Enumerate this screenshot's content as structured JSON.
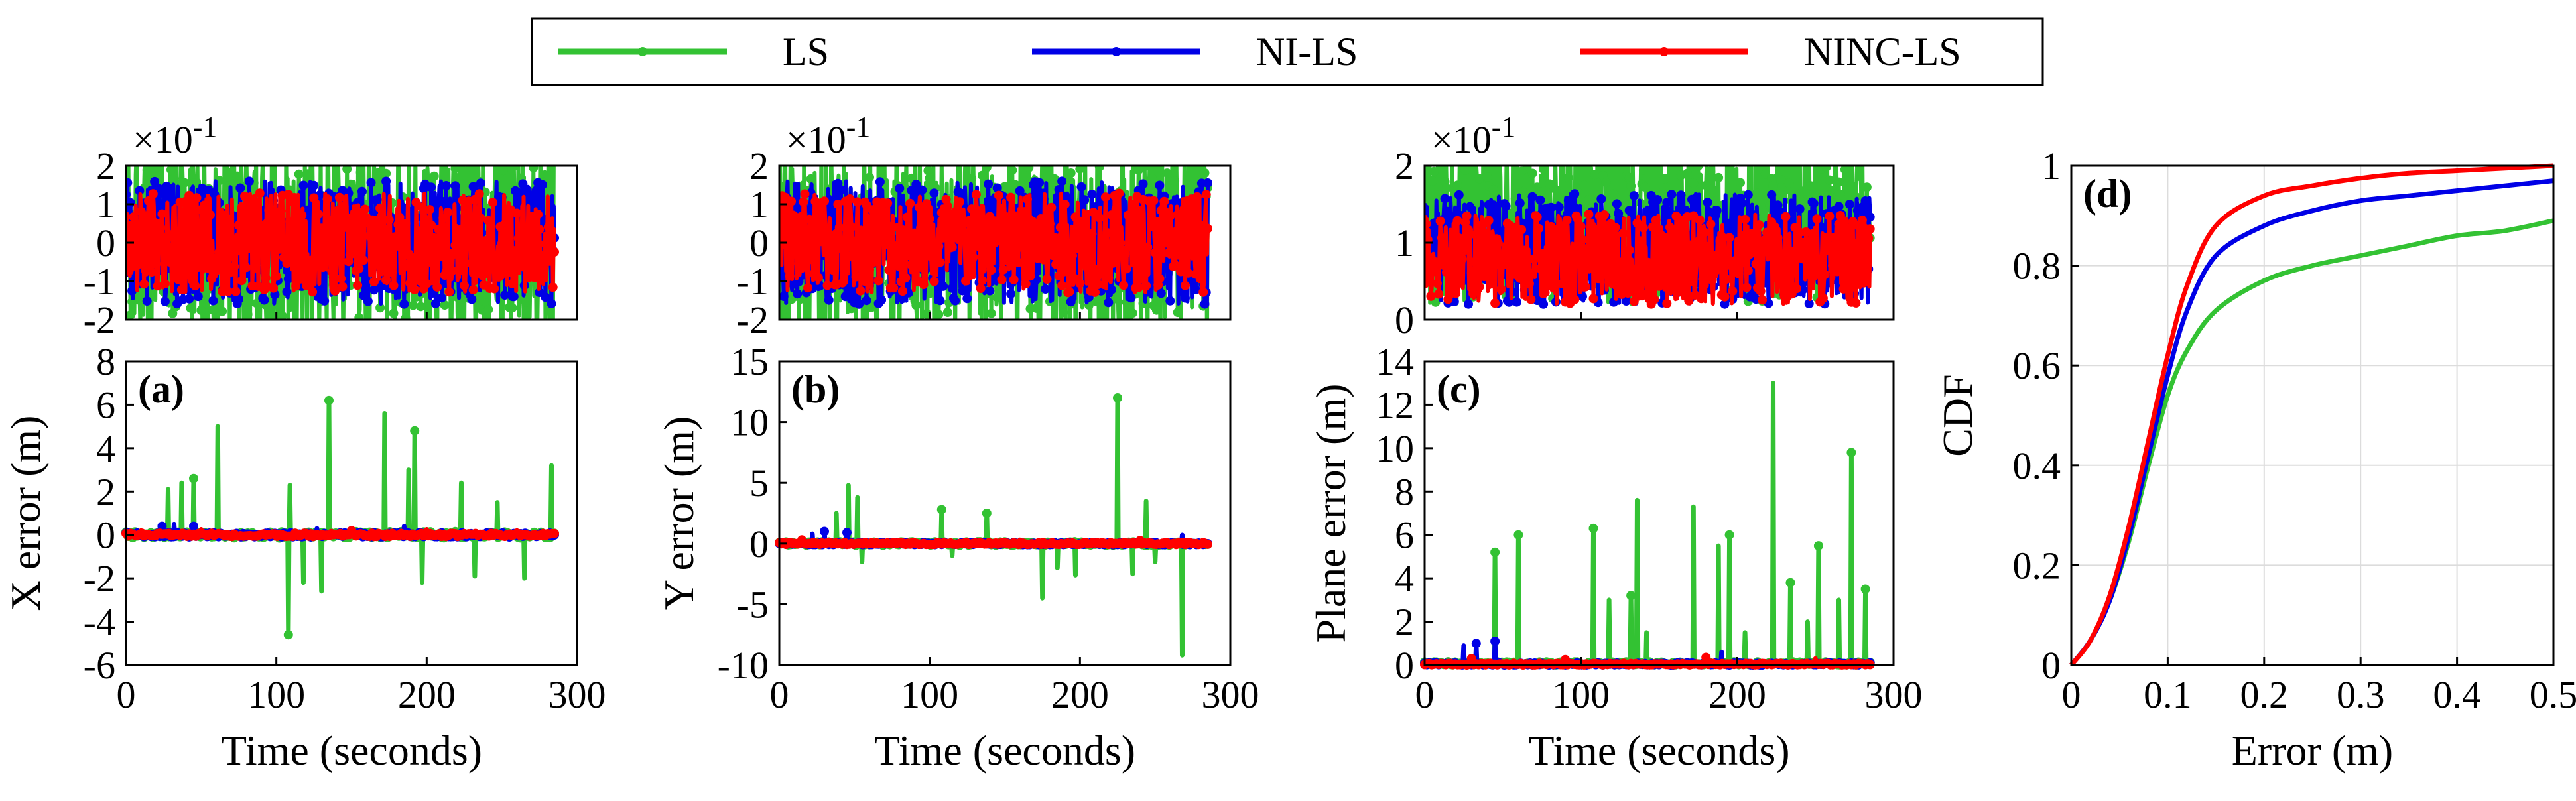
{
  "legend": {
    "entries": [
      {
        "label": "LS",
        "color": "#33c233"
      },
      {
        "label": "NI-LS",
        "color": "#0000e6"
      },
      {
        "label": "NINC-LS",
        "color": "#ff0000"
      }
    ]
  },
  "colors": {
    "LS": "#33c233",
    "NI-LS": "#0000e6",
    "NINC-LS": "#ff0000",
    "grid": "#dcdcdc",
    "axis": "#000000"
  },
  "chart_data": [
    {
      "id": "a",
      "type": "line",
      "panel_label": "(a)",
      "ylabel": "X error (m)",
      "xlabel": "Time (seconds)",
      "xlim": [
        0,
        300
      ],
      "ylim": [
        -6,
        8
      ],
      "xticks": [
        0,
        100,
        200,
        300
      ],
      "yticks": [
        -6,
        -4,
        -2,
        0,
        2,
        4,
        6,
        8
      ],
      "inset": {
        "ylim": [
          -2,
          2
        ],
        "yticks": [
          -2,
          -1,
          0,
          1,
          2
        ],
        "exponent_label": "×10",
        "exponent": "-1"
      },
      "series": [
        {
          "name": "LS",
          "spikes": [
            [
              28,
              2.1
            ],
            [
              37,
              2.4
            ],
            [
              45,
              2.6
            ],
            [
              61,
              5.0
            ],
            [
              108,
              -4.6
            ],
            [
              109,
              2.3
            ],
            [
              118,
              -2.2
            ],
            [
              130,
              -2.6
            ],
            [
              135,
              6.2
            ],
            [
              172,
              5.6
            ],
            [
              188,
              3.0
            ],
            [
              192,
              4.8
            ],
            [
              197,
              -2.2
            ],
            [
              223,
              2.4
            ],
            [
              232,
              -1.9
            ],
            [
              247,
              1.5
            ],
            [
              265,
              -2.0
            ],
            [
              283,
              3.2
            ]
          ]
        },
        {
          "name": "NI-LS",
          "spikes": [
            [
              24,
              0.4
            ],
            [
              32,
              0.5
            ],
            [
              45,
              0.4
            ],
            [
              127,
              0.3
            ],
            [
              185,
              0.4
            ]
          ]
        },
        {
          "name": "NINC-LS",
          "spikes": [
            [
              10,
              0.2
            ],
            [
              50,
              0.25
            ],
            [
              150,
              0.2
            ],
            [
              200,
              0.25
            ],
            [
              260,
              0.2
            ]
          ]
        }
      ]
    },
    {
      "id": "b",
      "type": "line",
      "panel_label": "(b)",
      "ylabel": "Y error (m)",
      "xlabel": "Time (seconds)",
      "xlim": [
        0,
        300
      ],
      "ylim": [
        -10,
        15
      ],
      "xticks": [
        0,
        100,
        200,
        300
      ],
      "yticks": [
        -10,
        -5,
        0,
        5,
        10,
        15
      ],
      "inset": {
        "ylim": [
          -2,
          2
        ],
        "yticks": [
          -2,
          -1,
          0,
          1,
          2
        ],
        "exponent_label": "×10",
        "exponent": "-1"
      },
      "series": [
        {
          "name": "LS",
          "spikes": [
            [
              38,
              2.5
            ],
            [
              46,
              4.8
            ],
            [
              52,
              3.8
            ],
            [
              55,
              -1.5
            ],
            [
              108,
              2.8
            ],
            [
              115,
              -1.0
            ],
            [
              138,
              2.5
            ],
            [
              175,
              -4.5
            ],
            [
              185,
              -2.0
            ],
            [
              197,
              -2.6
            ],
            [
              225,
              12.0
            ],
            [
              235,
              -2.5
            ],
            [
              244,
              3.5
            ],
            [
              250,
              -1.5
            ],
            [
              268,
              -9.2
            ]
          ]
        },
        {
          "name": "NI-LS",
          "spikes": [
            [
              22,
              0.8
            ],
            [
              30,
              1.0
            ],
            [
              45,
              0.9
            ],
            [
              268,
              0.7
            ]
          ]
        },
        {
          "name": "NINC-LS",
          "spikes": [
            [
              15,
              0.3
            ],
            [
              80,
              0.25
            ],
            [
              160,
              0.3
            ],
            [
              240,
              0.25
            ]
          ]
        }
      ]
    },
    {
      "id": "c",
      "type": "line",
      "panel_label": "(c)",
      "ylabel": "Plane error (m)",
      "xlabel": "Time (seconds)",
      "xlim": [
        0,
        300
      ],
      "ylim": [
        0,
        14
      ],
      "xticks": [
        0,
        100,
        200,
        300
      ],
      "yticks": [
        0,
        2,
        4,
        6,
        8,
        10,
        12,
        14
      ],
      "inset": {
        "ylim": [
          0,
          2
        ],
        "yticks": [
          0,
          1,
          2
        ],
        "exponent_label": "×10",
        "exponent": "-1"
      },
      "series": [
        {
          "name": "LS",
          "spikes": [
            [
              45,
              5.2
            ],
            [
              60,
              6.0
            ],
            [
              108,
              6.3
            ],
            [
              118,
              3.0
            ],
            [
              132,
              3.2
            ],
            [
              136,
              7.6
            ],
            [
              142,
              1.5
            ],
            [
              172,
              7.3
            ],
            [
              188,
              5.5
            ],
            [
              195,
              6.0
            ],
            [
              205,
              1.5
            ],
            [
              223,
              13.0
            ],
            [
              234,
              3.8
            ],
            [
              245,
              2.0
            ],
            [
              252,
              5.5
            ],
            [
              265,
              3.0
            ],
            [
              273,
              9.8
            ],
            [
              282,
              3.5
            ]
          ]
        },
        {
          "name": "NI-LS",
          "spikes": [
            [
              25,
              0.9
            ],
            [
              33,
              1.0
            ],
            [
              45,
              1.1
            ],
            [
              190,
              0.6
            ]
          ]
        },
        {
          "name": "NINC-LS",
          "spikes": [
            [
              30,
              0.3
            ],
            [
              90,
              0.25
            ],
            [
              180,
              0.35
            ],
            [
              250,
              0.3
            ]
          ]
        }
      ]
    },
    {
      "id": "d",
      "type": "line",
      "panel_label": "(d)",
      "ylabel": "CDF",
      "xlabel": "Error (m)",
      "xlim": [
        0,
        0.5
      ],
      "ylim": [
        0,
        1
      ],
      "xticks": [
        0,
        0.1,
        0.2,
        0.3,
        0.4,
        0.5
      ],
      "yticks": [
        0,
        0.2,
        0.4,
        0.6,
        0.8,
        1
      ],
      "grid": true,
      "x": [
        0,
        0.02,
        0.04,
        0.06,
        0.08,
        0.1,
        0.12,
        0.15,
        0.2,
        0.25,
        0.3,
        0.35,
        0.4,
        0.45,
        0.5
      ],
      "series": [
        {
          "name": "LS",
          "values": [
            0,
            0.05,
            0.13,
            0.25,
            0.4,
            0.54,
            0.63,
            0.71,
            0.77,
            0.8,
            0.82,
            0.84,
            0.86,
            0.87,
            0.89
          ]
        },
        {
          "name": "NI-LS",
          "values": [
            0,
            0.05,
            0.13,
            0.26,
            0.42,
            0.58,
            0.71,
            0.82,
            0.88,
            0.91,
            0.93,
            0.94,
            0.95,
            0.96,
            0.97
          ]
        },
        {
          "name": "NINC-LS",
          "values": [
            0,
            0.05,
            0.14,
            0.28,
            0.45,
            0.62,
            0.76,
            0.88,
            0.94,
            0.96,
            0.975,
            0.985,
            0.99,
            0.995,
            1.0
          ]
        }
      ]
    }
  ]
}
